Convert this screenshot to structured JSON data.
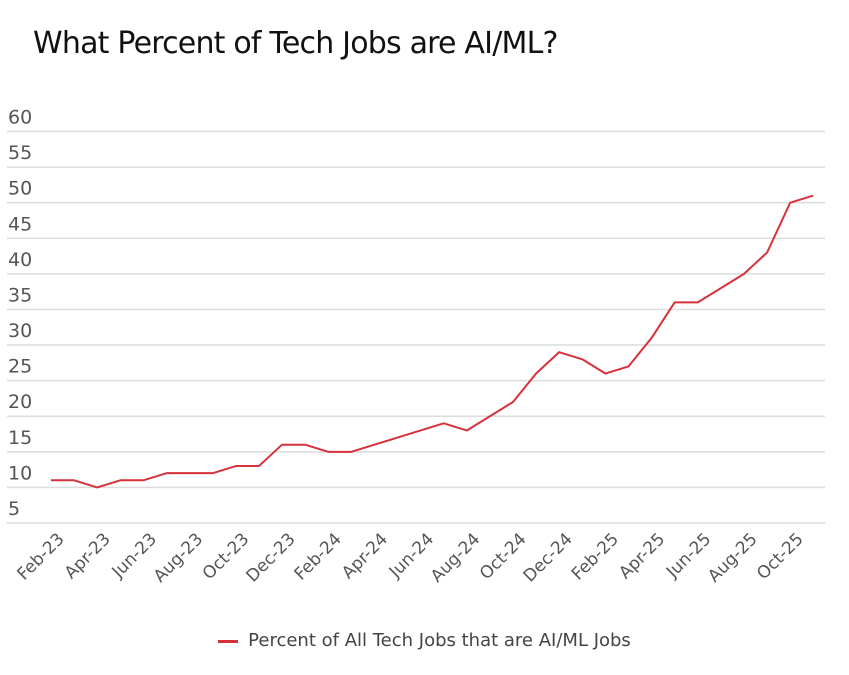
{
  "chart_data": {
    "type": "line",
    "title": "What Percent of Tech Jobs are AI/ML?",
    "xlabel": "",
    "ylabel": "",
    "ylim": [
      5,
      60
    ],
    "yticks": [
      5,
      10,
      15,
      20,
      25,
      30,
      35,
      40,
      45,
      50,
      55,
      60
    ],
    "grid": true,
    "legend_position": "bottom",
    "categories": [
      "Feb-23",
      "Mar-23",
      "Apr-23",
      "May-23",
      "Jun-23",
      "Jul-23",
      "Aug-23",
      "Sep-23",
      "Oct-23",
      "Nov-23",
      "Dec-23",
      "Jan-24",
      "Feb-24",
      "Mar-24",
      "Apr-24",
      "May-24",
      "Jun-24",
      "Jul-24",
      "Aug-24",
      "Sep-24",
      "Oct-24",
      "Nov-24",
      "Dec-24",
      "Jan-25",
      "Feb-25",
      "Mar-25",
      "Apr-25",
      "May-25",
      "Jun-25",
      "Jul-25",
      "Aug-25",
      "Sep-25",
      "Oct-25",
      "Nov-25"
    ],
    "xtick_labels": [
      "Feb-23",
      "Apr-23",
      "Jun-23",
      "Aug-23",
      "Oct-23",
      "Dec-23",
      "Feb-24",
      "Apr-24",
      "Jun-24",
      "Aug-24",
      "Oct-24",
      "Dec-24",
      "Feb-25",
      "Apr-25",
      "Jun-25",
      "Aug-25",
      "Oct-25"
    ],
    "series": [
      {
        "name": "Percent of All Tech Jobs that are AI/ML Jobs",
        "color": "#d7313b",
        "values": [
          11,
          11,
          10,
          11,
          11,
          12,
          12,
          12,
          13,
          13,
          16,
          16,
          15,
          15,
          16,
          17,
          18,
          19,
          18,
          20,
          22,
          26,
          29,
          28,
          26,
          27,
          31,
          36,
          36,
          38,
          40,
          43,
          50,
          51
        ]
      }
    ]
  }
}
